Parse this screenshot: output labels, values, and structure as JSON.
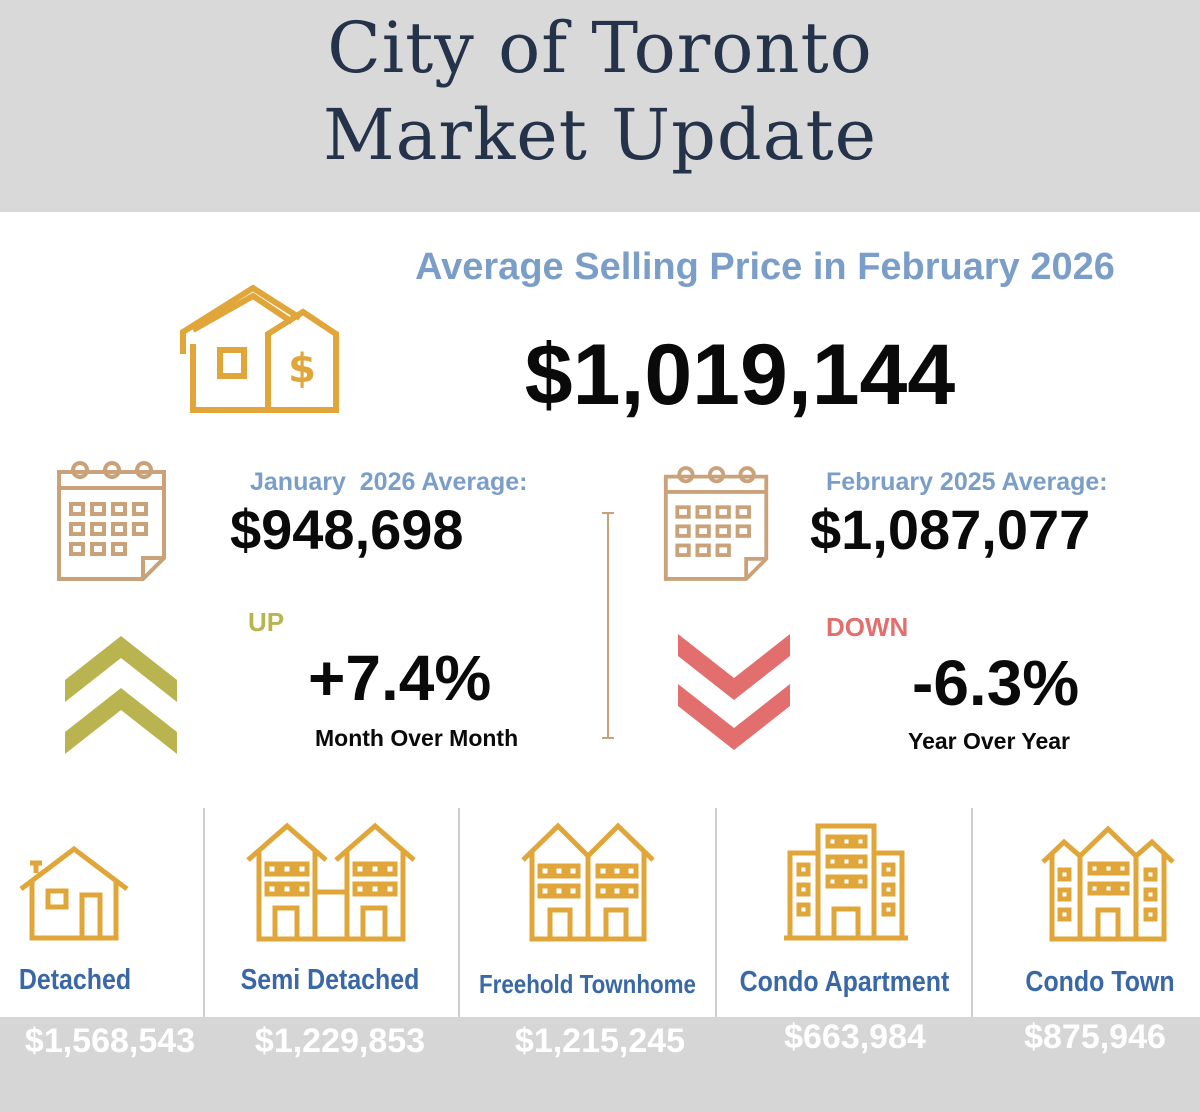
{
  "header": {
    "title_line1": "City of Toronto",
    "title_line2": "Market Update"
  },
  "headline": {
    "label": "Average Selling Price in February 2026",
    "value": "$1,019,144"
  },
  "comparisons": {
    "previous_month": {
      "label": "January  2026 Average:",
      "value": "$948,698",
      "direction": "UP",
      "change": "+7.4%",
      "period": "Month Over Month"
    },
    "previous_year": {
      "label": "February 2025 Average:",
      "value": "$1,087,077",
      "direction": "DOWN",
      "change": "-6.3%",
      "period": "Year Over Year"
    }
  },
  "property_types": [
    {
      "name": "Detached",
      "price": "$1,568,543"
    },
    {
      "name": "Semi Detached",
      "price": "$1,229,853"
    },
    {
      "name": "Freehold Townhome",
      "price": "$1,215,245"
    },
    {
      "name": "Condo Apartment",
      "price": "$663,984"
    },
    {
      "name": "Condo Town",
      "price": "$875,946"
    }
  ],
  "colors": {
    "header_bg": "#d9d9d9",
    "title": "#24324a",
    "accent_blue": "#7b9ec8",
    "icon_gold": "#e0a63a",
    "icon_tan": "#c9a27a",
    "up": "#b9b44f",
    "down": "#e26e6e",
    "type_label": "#3a68a6",
    "price_band": "#d6d6d6"
  }
}
